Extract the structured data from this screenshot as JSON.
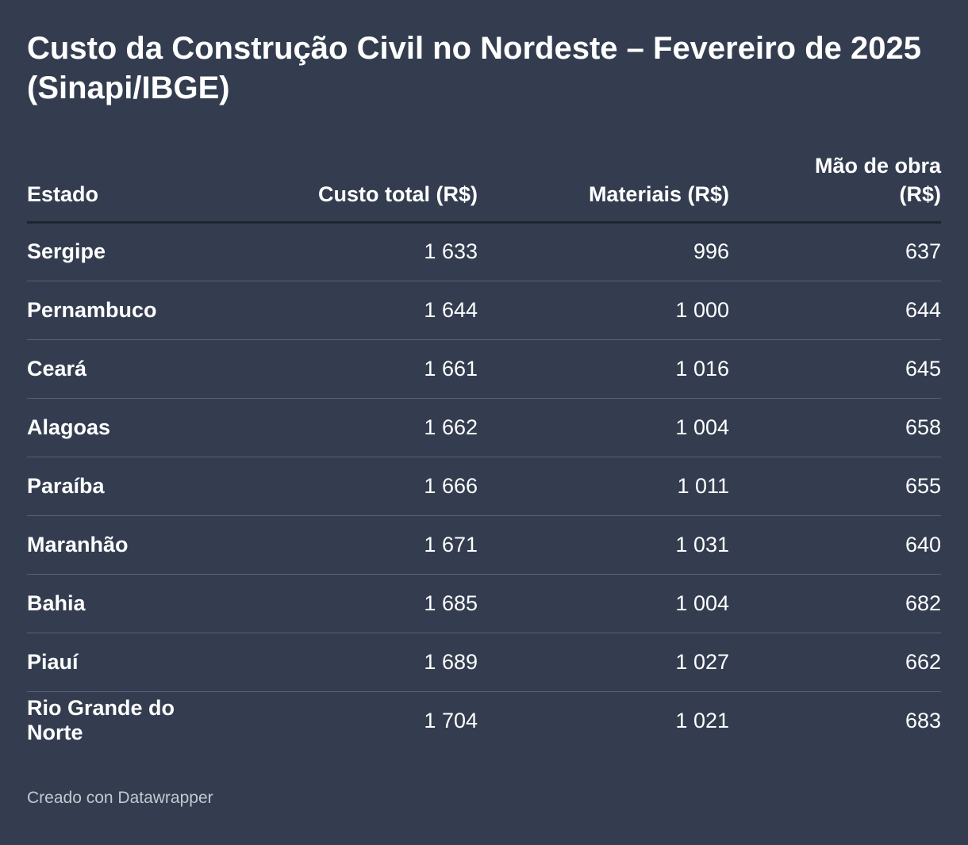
{
  "title": "Custo da Construção Civil no Nordeste – Fevereiro de 2025 (Sinapi/IBGE)",
  "credit": "Creado con Datawrapper",
  "colors": {
    "background": "#333d4f",
    "text": "#ffffff",
    "header_rule": "#1e2430",
    "row_rule": "#56607a",
    "credit": "#c3c8d2"
  },
  "chart_data": {
    "type": "table",
    "columns": [
      "Estado",
      "Custo total (R$)",
      "Materiais (R$)",
      "Mão de obra (R$)"
    ],
    "rows": [
      [
        "Sergipe",
        "1 633",
        "996",
        "637"
      ],
      [
        "Pernambuco",
        "1 644",
        "1 000",
        "644"
      ],
      [
        "Ceará",
        "1 661",
        "1 016",
        "645"
      ],
      [
        "Alagoas",
        "1 662",
        "1 004",
        "658"
      ],
      [
        "Paraíba",
        "1 666",
        "1 011",
        "655"
      ],
      [
        "Maranhão",
        "1 671",
        "1 031",
        "640"
      ],
      [
        "Bahia",
        "1 685",
        "1 004",
        "682"
      ],
      [
        "Piauí",
        "1 689",
        "1 027",
        "662"
      ],
      [
        "Rio Grande do Norte",
        "1 704",
        "1 021",
        "683"
      ]
    ]
  }
}
